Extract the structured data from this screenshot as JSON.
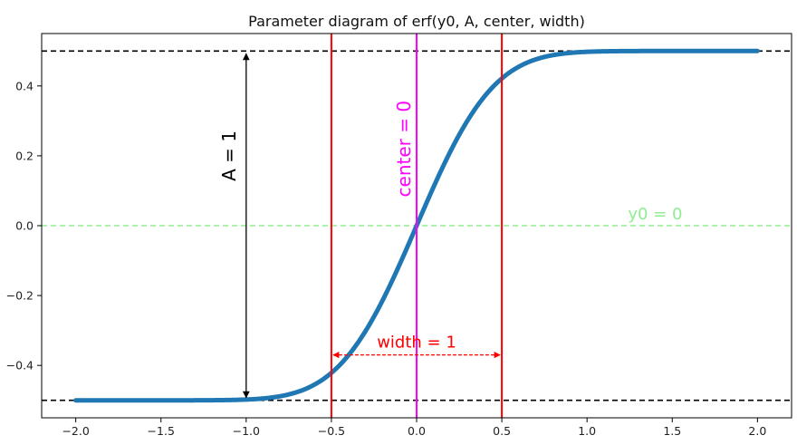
{
  "chart_data": {
    "type": "line",
    "title": "Parameter diagram of erf(y0, A, center, width)",
    "xlabel": "",
    "ylabel": "",
    "xlim": [
      -2.2,
      2.2
    ],
    "ylim": [
      -0.55,
      0.55
    ],
    "grid": false,
    "xticks": [
      -2.0,
      -1.5,
      -1.0,
      -0.5,
      0.0,
      0.5,
      1.0,
      1.5,
      2.0
    ],
    "xtick_labels": [
      "−2.0",
      "−1.5",
      "−1.0",
      "−0.5",
      "0.0",
      "0.5",
      "1.0",
      "1.5",
      "2.0"
    ],
    "yticks": [
      -0.4,
      -0.2,
      0.0,
      0.2,
      0.4
    ],
    "ytick_labels": [
      "−0.4",
      "−0.2",
      "0.0",
      "0.2",
      "0.4"
    ],
    "series": [
      {
        "function": "0.5*erf(2*(x - center)/width)",
        "x_range": [
          -2.0,
          2.0
        ],
        "color": "#1f77b4",
        "center": 0,
        "width": 1,
        "A": 1,
        "y0": 0
      }
    ],
    "reference_lines": {
      "top_bound": {
        "y": 0.5,
        "color": "#000000",
        "style": "dashed"
      },
      "bottom_bound": {
        "y": -0.5,
        "color": "#000000",
        "style": "dashed"
      },
      "baseline": {
        "y": 0.0,
        "color": "#90ee90",
        "style": "dashed"
      },
      "width_left": {
        "x": -0.5,
        "color": "#ff0000"
      },
      "width_right": {
        "x": 0.5,
        "color": "#ff0000"
      },
      "center_line": {
        "x": 0.0,
        "color": "#ff00ff"
      }
    },
    "annotations": {
      "amplitude": {
        "text": "A = 1",
        "x": -1.0,
        "y_from": -0.5,
        "y_to": 0.5,
        "color": "#000000"
      },
      "width": {
        "text": "width = 1",
        "x_from": -0.5,
        "x_to": 0.5,
        "y": -0.37,
        "color": "#ff0000"
      },
      "center": {
        "text": "center = 0",
        "color": "#ff00ff"
      },
      "y0": {
        "text": "y0 = 0",
        "color": "#90ee90"
      }
    }
  }
}
